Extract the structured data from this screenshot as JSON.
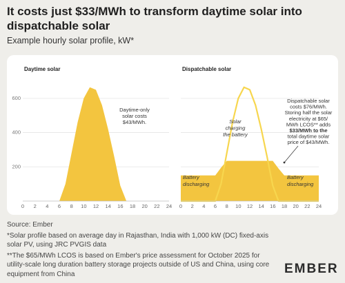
{
  "title": "It costs just $33/MWh to transform daytime solar into dispatchable solar",
  "subtitle": "Example hourly solar profile, kW*",
  "chart_data": [
    {
      "type": "area",
      "title": "Daytime solar",
      "x": [
        0,
        1,
        2,
        3,
        4,
        5,
        6,
        7,
        8,
        9,
        10,
        11,
        12,
        13,
        14,
        15,
        16,
        17,
        18,
        19,
        20,
        21,
        22,
        23,
        24
      ],
      "values": [
        0,
        0,
        0,
        0,
        0,
        0,
        0,
        100,
        280,
        460,
        600,
        665,
        650,
        560,
        420,
        260,
        90,
        0,
        0,
        0,
        0,
        0,
        0,
        0,
        0
      ],
      "color": "#f3c53f",
      "xlim": [
        0,
        24
      ],
      "xticks": [
        0,
        2,
        4,
        6,
        8,
        10,
        12,
        14,
        16,
        18,
        20,
        22,
        24
      ],
      "ylim": [
        0,
        700
      ],
      "yticks": [
        200,
        400,
        600
      ],
      "grid": true,
      "annotations": [
        [
          "Daytime-only",
          "solar costs",
          "$43/MWh."
        ]
      ]
    },
    {
      "type": "area",
      "title": "Dispatchable solar",
      "x": [
        0,
        1,
        2,
        3,
        4,
        5,
        6,
        7,
        8,
        9,
        10,
        11,
        12,
        13,
        14,
        15,
        16,
        17,
        18,
        19,
        20,
        21,
        22,
        23,
        24
      ],
      "series": [
        {
          "type": "area",
          "color": "#f3c53f",
          "values": [
            150,
            150,
            150,
            150,
            150,
            150,
            150,
            195,
            235,
            235,
            235,
            235,
            235,
            235,
            235,
            235,
            235,
            190,
            150,
            150,
            150,
            150,
            150,
            150,
            150
          ]
        },
        {
          "type": "line",
          "color": "#f7d64e",
          "values": [
            0,
            0,
            0,
            0,
            0,
            0,
            0,
            100,
            280,
            460,
            600,
            665,
            650,
            560,
            420,
            260,
            90,
            0,
            0,
            0,
            0,
            0,
            0,
            0,
            0
          ]
        }
      ],
      "xlim": [
        0,
        24
      ],
      "xticks": [
        0,
        2,
        4,
        6,
        8,
        10,
        12,
        14,
        16,
        18,
        20,
        22,
        24
      ],
      "ylim": [
        0,
        700
      ],
      "grid": true,
      "annotations": [
        [
          "Battery",
          "discharging"
        ],
        [
          "Solar",
          "charging",
          "the battery"
        ],
        [
          "Battery",
          "discharging"
        ],
        [
          "Dispatchable solar",
          "costs $76/MWh.",
          "Storing half the solar",
          "electricity at $65/",
          "MWh LCOS** adds",
          "$33/MWh to the",
          "total daytime solar",
          "price of $43/MWh."
        ]
      ]
    }
  ],
  "footer": {
    "source": "Source: Ember",
    "notes": [
      "*Solar profile based on average day in Rajasthan, India with 1,000 kW (DC) fixed-axis solar PV, using JRC PVGIS data",
      "**The $65/MWh LCOS is based on Ember's price assessment for October 2025 for utility-scale long duration battery storage projects outside of US and China, using core equipment from China"
    ]
  },
  "logo": "EMBER"
}
